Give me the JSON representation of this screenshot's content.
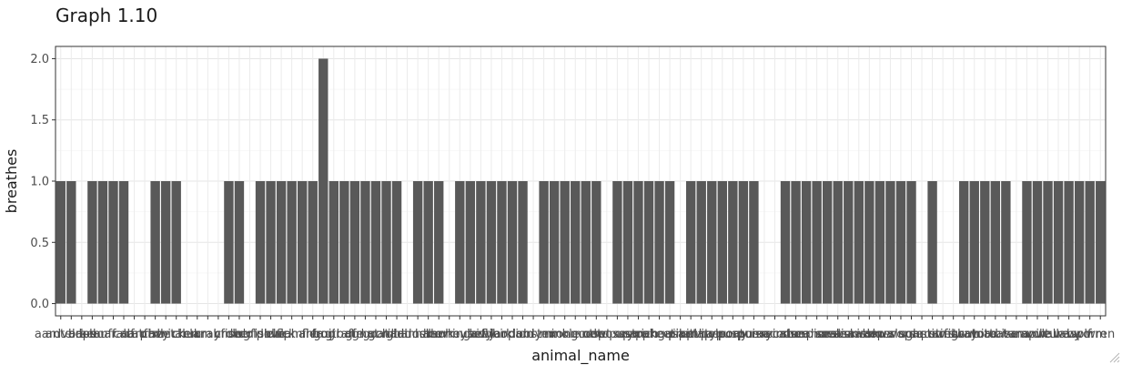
{
  "chart_data": {
    "type": "bar",
    "title": "Graph 1.10",
    "xlabel": "animal_name",
    "ylabel": "breathes",
    "ylim": [
      -0.1,
      2.1
    ],
    "yticks": [
      0.0,
      0.5,
      1.0,
      1.5,
      2.0
    ],
    "ytick_labels": [
      "0.0",
      "0.5",
      "1.0",
      "1.5",
      "2.0"
    ],
    "grid": true,
    "legend": "none",
    "bar_color": "#595959",
    "categories": [
      "aardvark",
      "antelope",
      "bass",
      "bear",
      "boar",
      "buffalo",
      "calf",
      "carp",
      "catfish",
      "cavy",
      "cheetah",
      "chicken",
      "chub",
      "clam",
      "crab",
      "crayfish",
      "crow",
      "deer",
      "dogfish",
      "dolphin",
      "dove",
      "duck",
      "elephant",
      "flamingo",
      "flea",
      "frog",
      "fruitbat",
      "giraffe",
      "girl",
      "gnat",
      "goat",
      "gorilla",
      "gull",
      "haddock",
      "hamster",
      "hare",
      "hawk",
      "herring",
      "honeybee",
      "housefly",
      "kiwi",
      "ladybird",
      "lark",
      "leopard",
      "lion",
      "lobster",
      "lynx",
      "mink",
      "mole",
      "mongoose",
      "moth",
      "newt",
      "octopus",
      "opossum",
      "oryx",
      "ostrich",
      "parakeet",
      "penguin",
      "pheasant",
      "pike",
      "piranha",
      "pitviper",
      "platypus",
      "polecat",
      "pony",
      "porpoise",
      "puma",
      "pussycat",
      "raccoon",
      "reindeer",
      "rhea",
      "scorpion",
      "seahorse",
      "seal",
      "sealion",
      "seasnake",
      "seawasp",
      "skimmer",
      "skua",
      "slowworm",
      "slug",
      "sole",
      "sparrow",
      "squirrel",
      "starfish",
      "stingray",
      "swan",
      "termite",
      "toad",
      "tortoise",
      "tuatara",
      "tuna",
      "vampire",
      "vole",
      "vulture",
      "wallaby",
      "wasp",
      "wolf",
      "worm",
      "wren"
    ],
    "values": [
      1,
      1,
      0,
      1,
      1,
      1,
      1,
      0,
      0,
      1,
      1,
      1,
      0,
      0,
      0,
      0,
      1,
      1,
      0,
      1,
      1,
      1,
      1,
      1,
      1,
      2,
      1,
      1,
      1,
      1,
      1,
      1,
      1,
      0,
      1,
      1,
      1,
      0,
      1,
      1,
      1,
      1,
      1,
      1,
      1,
      0,
      1,
      1,
      1,
      1,
      1,
      1,
      0,
      1,
      1,
      1,
      1,
      1,
      1,
      0,
      1,
      1,
      1,
      1,
      1,
      1,
      1,
      0,
      0,
      1,
      1,
      1,
      1,
      1,
      1,
      1,
      1,
      1,
      1,
      1,
      1,
      1,
      0,
      1,
      0,
      0,
      1,
      1,
      1,
      1,
      1,
      0,
      1,
      1,
      1,
      1,
      1,
      1,
      1,
      1
    ]
  }
}
